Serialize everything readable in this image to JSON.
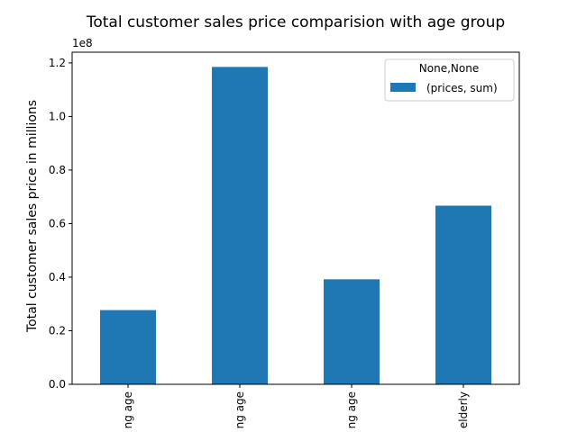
{
  "chart_data": {
    "type": "bar",
    "title": "Total customer sales price comparision with age group",
    "xlabel": "",
    "ylabel": "Total customer sales price in millions",
    "y_offset_label": "1e8",
    "categories": [
      "ng age",
      "ng age",
      "ng age",
      "elderly"
    ],
    "series": [
      {
        "name": "(prices, sum)",
        "color": "#1f77b4",
        "values": [
          27700000,
          118500000,
          39200000,
          66700000
        ]
      }
    ],
    "ylim": [
      0,
      124000000
    ],
    "yticks": [
      {
        "value": 0,
        "label": "0.0"
      },
      {
        "value": 20000000,
        "label": "0.2"
      },
      {
        "value": 40000000,
        "label": "0.4"
      },
      {
        "value": 60000000,
        "label": "0.6"
      },
      {
        "value": 80000000,
        "label": "0.8"
      },
      {
        "value": 100000000,
        "label": "1.0"
      },
      {
        "value": 120000000,
        "label": "1.2"
      }
    ],
    "legend": {
      "title": "None,None",
      "placement": "top-right",
      "entries": [
        "(prices, sum)"
      ]
    },
    "grid": false
  }
}
